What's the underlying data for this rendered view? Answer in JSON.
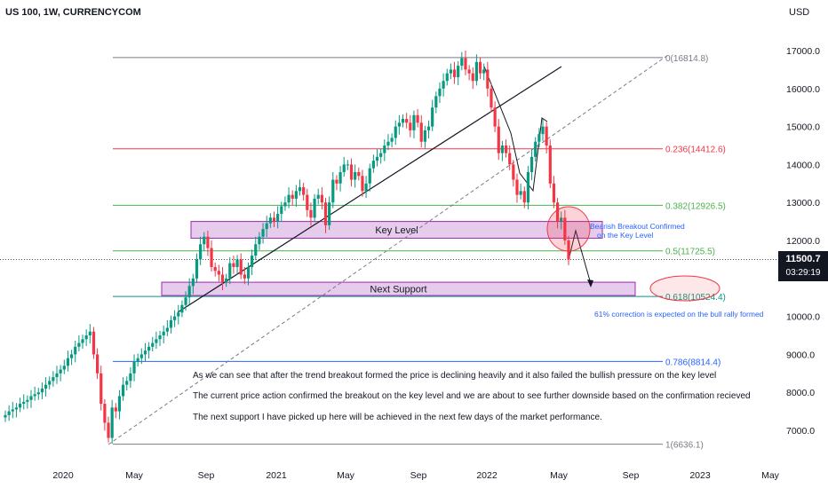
{
  "header": {
    "symbol_label": "US 100, 1W, CURRENCYCOM",
    "currency": "USD"
  },
  "current_price": {
    "value": "11500.7",
    "countdown": "03:29:19",
    "price": 11500.7
  },
  "chart_data": {
    "type": "candlestick",
    "ylim": [
      6400,
      17600
    ],
    "y_ticks": [
      "17000.0",
      "16000.0",
      "15000.0",
      "14000.0",
      "13000.0",
      "12000.0",
      "10000.0",
      "9000.0",
      "8000.0",
      "7000.0"
    ],
    "y_tick_values": [
      17000,
      16000,
      15000,
      14000,
      13000,
      12000,
      10000,
      9000,
      8000,
      7000
    ],
    "x_ticks": [
      "2020",
      "May",
      "Sep",
      "2021",
      "May",
      "Sep",
      "2022",
      "May",
      "Sep",
      "2023",
      "May"
    ],
    "fib_levels": [
      {
        "ratio": 0,
        "price": 16814.8,
        "label": "0(16814.8)",
        "color": "#787b86"
      },
      {
        "ratio": 0.236,
        "price": 14412.6,
        "label": "0.236(14412.6)",
        "color": "#f23645"
      },
      {
        "ratio": 0.382,
        "price": 12926.5,
        "label": "0.382(12926.5)",
        "color": "#4caf50"
      },
      {
        "ratio": 0.5,
        "price": 11725.5,
        "label": "0.5(11725.5)",
        "color": "#4caf50"
      },
      {
        "ratio": 0.618,
        "price": 10524.4,
        "label": "0.618(10524.4)",
        "color": "#089981"
      },
      {
        "ratio": 0.786,
        "price": 8814.4,
        "label": "0.786(8814.4)",
        "color": "#2962ff"
      },
      {
        "ratio": 1,
        "price": 6636.1,
        "label": "1(6636.1)",
        "color": "#787b86"
      }
    ],
    "zones": [
      {
        "label": "Key Level",
        "top": 12500,
        "bottom": 12060
      },
      {
        "label": "Next Support",
        "top": 10900,
        "bottom": 10550
      }
    ],
    "candles_weekly_close": [
      7400,
      7500,
      7550,
      7600,
      7700,
      7750,
      7800,
      7900,
      7950,
      8000,
      8100,
      8200,
      8300,
      8400,
      8500,
      8600,
      8700,
      8900,
      9000,
      9200,
      9300,
      9400,
      9500,
      9600,
      9000,
      8500,
      7700,
      7200,
      6800,
      7600,
      7500,
      7900,
      8200,
      8300,
      8500,
      8800,
      8900,
      9000,
      9100,
      9200,
      9300,
      9400,
      9500,
      9600,
      9700,
      9900,
      10000,
      10100,
      10300,
      10500,
      10800,
      11000,
      11500,
      11900,
      12100,
      11800,
      11300,
      11200,
      11100,
      10900,
      11000,
      11400,
      11300,
      11500,
      11100,
      11000,
      11300,
      11600,
      11900,
      12100,
      12300,
      12450,
      12600,
      12500,
      12700,
      12900,
      13000,
      13200,
      13100,
      13300,
      13400,
      13200,
      12800,
      12600,
      13100,
      13200,
      13000,
      12400,
      13000,
      13600,
      13500,
      13800,
      14000,
      14000,
      13600,
      13800,
      13700,
      13300,
      13500,
      13900,
      14100,
      14200,
      14300,
      14500,
      14600,
      14700,
      15000,
      15100,
      15200,
      15100,
      14900,
      15300,
      15100,
      14600,
      14900,
      15000,
      15500,
      15800,
      16000,
      16200,
      16400,
      16500,
      16300,
      16600,
      16800,
      16500,
      16400,
      16200,
      16700,
      16400,
      16500,
      16000,
      15500,
      15000,
      14300,
      14500,
      14300,
      14000,
      13600,
      13200,
      13300,
      13000,
      13800,
      14200,
      14600,
      14800,
      15000,
      14500,
      13500,
      13000,
      12500,
      12600,
      12000,
      11500
    ],
    "trendlines": [],
    "projection": {}
  },
  "annotations": {
    "bearish_note_line1": "Bearish Breakout Confirmed",
    "bearish_note_line2": "on the Key Level",
    "correction_note": "61% correction is expected on the bull rally formed",
    "text1": "As we can see that after the trend breakout formed the price is declining heavily and it also failed the bullish pressure on the key level",
    "text2": "The current price action confirmed the breakout on the key level and we are about to see further downside based on the confirmation recieved",
    "text3": "The next support I have picked up here will be achieved in the next few days of the market performance."
  },
  "colors": {
    "up": "#089981",
    "down": "#f23645",
    "zone_fill": "#e1bee7",
    "zone_border": "#9c27b0",
    "axis_text": "#131722"
  }
}
